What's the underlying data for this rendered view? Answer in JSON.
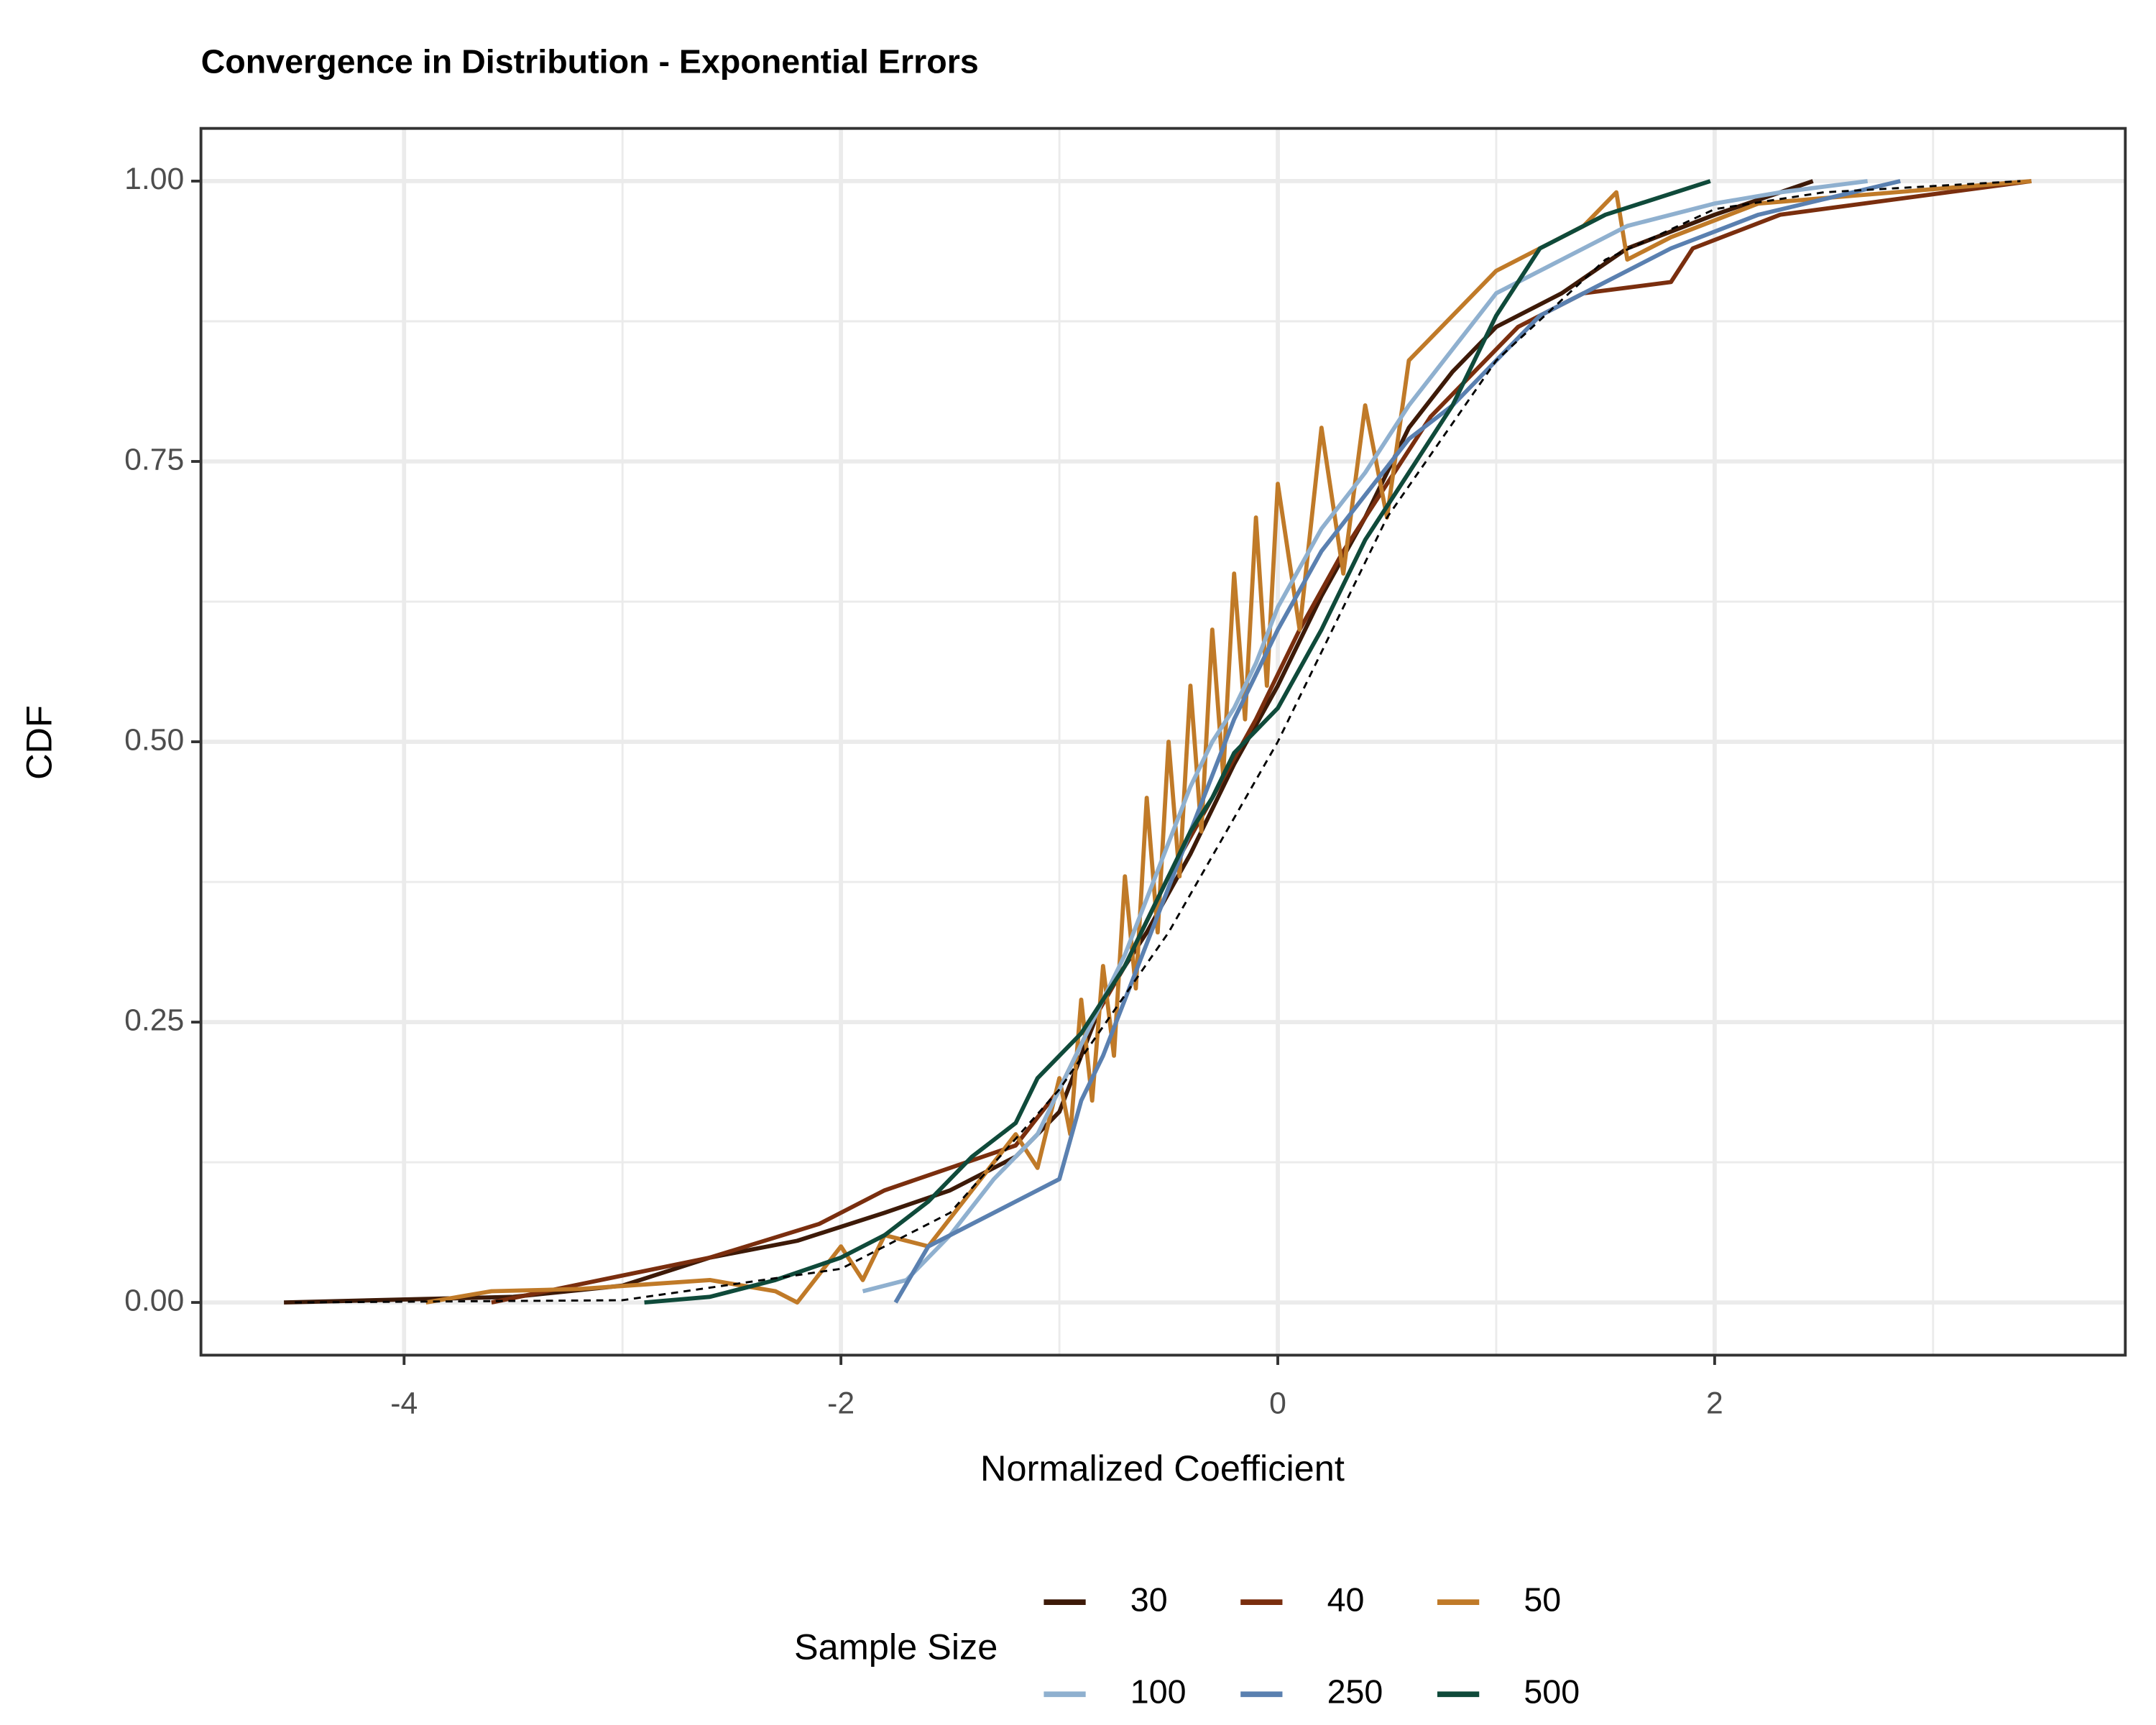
{
  "chart_data": {
    "type": "line",
    "title": "Convergence in Distribution - Exponential Errors",
    "x_label": "Normalized Coefficient",
    "y_label": "CDF",
    "legend_title": "Sample Size",
    "legend_position": "bottom",
    "grid": true,
    "xlim": [
      -4.93,
      3.88
    ],
    "ylim": [
      -0.047,
      1.047
    ],
    "xticks": [
      -4,
      -2,
      0,
      2
    ],
    "yticks": [
      {
        "value": 0,
        "label": "0.00"
      },
      {
        "value": 0.25,
        "label": "0.25"
      },
      {
        "value": 0.5,
        "label": "0.50"
      },
      {
        "value": 0.75,
        "label": "0.75"
      },
      {
        "value": 1,
        "label": "1.00"
      }
    ],
    "x_minor_grid": [
      -3,
      -1,
      1,
      3
    ],
    "y_minor_grid": [
      0.125,
      0.375,
      0.625,
      0.875
    ],
    "series": [
      {
        "name": "30",
        "color": "#3d1a08",
        "x": [
          -4.55,
          -3.5,
          -3.0,
          -2.6,
          -2.2,
          -1.8,
          -1.5,
          -1.2,
          -1.0,
          -0.9,
          -0.8,
          -0.6,
          -0.4,
          -0.2,
          0.0,
          0.2,
          0.4,
          0.6,
          0.8,
          1.0,
          1.3,
          1.6,
          2.0,
          2.45
        ],
        "values": [
          0,
          0.005,
          0.015,
          0.04,
          0.055,
          0.08,
          0.1,
          0.13,
          0.17,
          0.22,
          0.27,
          0.33,
          0.4,
          0.48,
          0.55,
          0.63,
          0.7,
          0.78,
          0.83,
          0.87,
          0.9,
          0.94,
          0.97,
          1
        ]
      },
      {
        "name": "40",
        "color": "#7a2e0e",
        "x": [
          -3.6,
          -3.1,
          -2.6,
          -2.1,
          -1.8,
          -1.5,
          -1.2,
          -1.0,
          -0.85,
          -0.7,
          -0.5,
          -0.3,
          -0.1,
          0.1,
          0.3,
          0.5,
          0.7,
          0.9,
          1.1,
          1.4,
          1.8,
          1.9,
          2.3,
          3.45
        ],
        "values": [
          0,
          0.02,
          0.04,
          0.07,
          0.1,
          0.12,
          0.14,
          0.19,
          0.25,
          0.3,
          0.38,
          0.45,
          0.52,
          0.6,
          0.67,
          0.73,
          0.79,
          0.83,
          0.87,
          0.9,
          0.91,
          0.94,
          0.97,
          1
        ]
      },
      {
        "name": "50",
        "color": "#c07a28",
        "x": [
          -3.9,
          -3.6,
          -3.2,
          -2.6,
          -2.3,
          -2.2,
          -2.0,
          -1.9,
          -1.8,
          -1.6,
          -1.4,
          -1.2,
          -1.1,
          -1.0,
          -0.95,
          -0.9,
          -0.85,
          -0.8,
          -0.75,
          -0.7,
          -0.65,
          -0.6,
          -0.55,
          -0.5,
          -0.45,
          -0.4,
          -0.35,
          -0.3,
          -0.25,
          -0.2,
          -0.15,
          -0.1,
          -0.05,
          0.0,
          0.1,
          0.2,
          0.3,
          0.4,
          0.5,
          0.6,
          0.8,
          1.0,
          1.2,
          1.4,
          1.55,
          1.6,
          1.8,
          2.2,
          3.45
        ],
        "values": [
          0,
          0.01,
          0.012,
          0.02,
          0.01,
          0.0,
          0.05,
          0.02,
          0.06,
          0.05,
          0.1,
          0.15,
          0.12,
          0.2,
          0.15,
          0.27,
          0.18,
          0.3,
          0.22,
          0.38,
          0.28,
          0.45,
          0.33,
          0.5,
          0.38,
          0.55,
          0.42,
          0.6,
          0.47,
          0.65,
          0.52,
          0.7,
          0.55,
          0.73,
          0.6,
          0.78,
          0.65,
          0.8,
          0.7,
          0.84,
          0.88,
          0.92,
          0.94,
          0.96,
          0.99,
          0.93,
          0.95,
          0.98,
          1
        ]
      },
      {
        "name": "100",
        "color": "#8fb0cf",
        "x": [
          -1.9,
          -1.7,
          -1.5,
          -1.3,
          -1.1,
          -1.0,
          -0.9,
          -0.8,
          -0.7,
          -0.6,
          -0.5,
          -0.4,
          -0.3,
          -0.2,
          -0.1,
          0.0,
          0.2,
          0.4,
          0.6,
          0.8,
          1.0,
          1.3,
          1.6,
          2.0,
          2.3,
          2.7
        ],
        "values": [
          0.01,
          0.02,
          0.06,
          0.11,
          0.15,
          0.19,
          0.23,
          0.27,
          0.31,
          0.36,
          0.41,
          0.46,
          0.5,
          0.53,
          0.57,
          0.62,
          0.69,
          0.74,
          0.8,
          0.85,
          0.9,
          0.93,
          0.96,
          0.98,
          0.99,
          1
        ]
      },
      {
        "name": "250",
        "color": "#5a80b0",
        "x": [
          -1.75,
          -1.6,
          -1.4,
          -1.2,
          -1.0,
          -0.9,
          -0.8,
          -0.7,
          -0.6,
          -0.5,
          -0.4,
          -0.3,
          -0.2,
          -0.1,
          0.0,
          0.2,
          0.4,
          0.6,
          0.8,
          1.0,
          1.2,
          1.5,
          1.8,
          2.2,
          2.85
        ],
        "values": [
          0,
          0.05,
          0.07,
          0.09,
          0.11,
          0.18,
          0.22,
          0.27,
          0.32,
          0.37,
          0.42,
          0.47,
          0.52,
          0.56,
          0.6,
          0.67,
          0.72,
          0.77,
          0.8,
          0.84,
          0.88,
          0.91,
          0.94,
          0.97,
          1
        ]
      },
      {
        "name": "500",
        "color": "#0f4a3a",
        "x": [
          -2.9,
          -2.6,
          -2.3,
          -2.0,
          -1.8,
          -1.6,
          -1.4,
          -1.2,
          -1.1,
          -1.0,
          -0.9,
          -0.8,
          -0.7,
          -0.6,
          -0.5,
          -0.4,
          -0.3,
          -0.2,
          -0.1,
          0.0,
          0.2,
          0.4,
          0.6,
          0.8,
          1.0,
          1.2,
          1.5,
          1.98
        ],
        "values": [
          0,
          0.005,
          0.02,
          0.04,
          0.06,
          0.09,
          0.13,
          0.16,
          0.2,
          0.22,
          0.24,
          0.27,
          0.3,
          0.34,
          0.38,
          0.42,
          0.45,
          0.49,
          0.51,
          0.53,
          0.6,
          0.68,
          0.74,
          0.8,
          0.88,
          0.94,
          0.97,
          1
        ]
      },
      {
        "color": "#000000",
        "dashed": true,
        "x": [
          -4.5,
          -3.0,
          -2.0,
          -1.5,
          -1.0,
          -0.5,
          0.0,
          0.5,
          1.0,
          1.5,
          2.0,
          2.5,
          3.4
        ],
        "values": [
          0,
          0.002,
          0.03,
          0.08,
          0.19,
          0.33,
          0.5,
          0.7,
          0.84,
          0.93,
          0.975,
          0.99,
          1
        ]
      }
    ]
  }
}
